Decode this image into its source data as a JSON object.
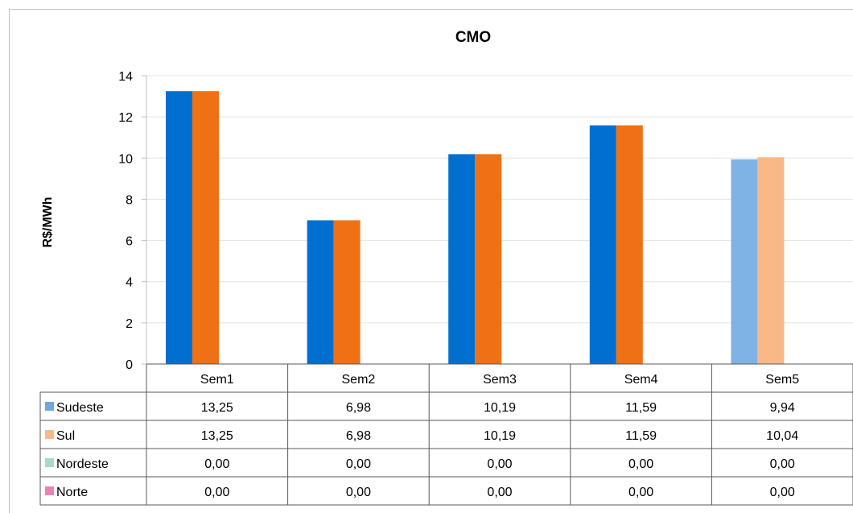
{
  "chart_data": {
    "type": "bar",
    "title": "CMO",
    "xlabel": "",
    "ylabel": "R$/MWh",
    "ylim": [
      0,
      14
    ],
    "yticks": [
      0,
      2,
      4,
      6,
      8,
      10,
      12,
      14
    ],
    "categories": [
      "Sem1",
      "Sem2",
      "Sem3",
      "Sem4",
      "Sem5"
    ],
    "grid": true,
    "legend": "data-table",
    "series": [
      {
        "name": "Sudeste",
        "color": "#0070d0",
        "values": [
          13.25,
          6.98,
          10.19,
          11.59,
          9.94
        ],
        "labels": [
          "13,25",
          "6,98",
          "10,19",
          "11,59",
          "9,94"
        ]
      },
      {
        "name": "Sul",
        "color": "#f07014",
        "values": [
          13.25,
          6.98,
          10.19,
          11.59,
          10.04
        ],
        "labels": [
          "13,25",
          "6,98",
          "10,19",
          "11,59",
          "10,04"
        ]
      },
      {
        "name": "Nordeste",
        "color": "#a8d8c8",
        "values": [
          0,
          0,
          0,
          0,
          0
        ],
        "labels": [
          "0,00",
          "0,00",
          "0,00",
          "0,00",
          "0,00"
        ]
      },
      {
        "name": "Norte",
        "color": "#e884b4",
        "values": [
          0,
          0,
          0,
          0,
          0
        ],
        "labels": [
          "0,00",
          "0,00",
          "0,00",
          "0,00",
          "0,00"
        ]
      }
    ],
    "faded_categories": [
      "Sem5"
    ],
    "legend_colors": [
      "#6fa8dc",
      "#f9b98a",
      "#a8d8c8",
      "#e884b4"
    ],
    "faded_colors": [
      "#7fb3e6",
      "#f8b888"
    ]
  }
}
